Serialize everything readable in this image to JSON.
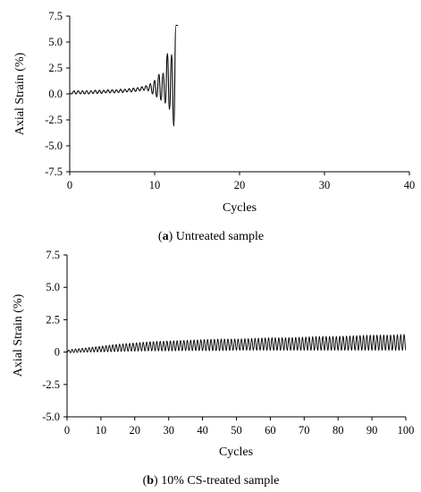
{
  "chart_data": [
    {
      "type": "line",
      "caption_label": "a",
      "caption_text": "Untreated sample",
      "xlabel": "Cycles",
      "ylabel": "Axial Strain (%)",
      "xlim": [
        0,
        40
      ],
      "ylim": [
        -7.5,
        7.5
      ],
      "x_ticks": [
        0,
        10,
        20,
        30,
        40
      ],
      "y_ticks": [
        -7.5,
        -5.0,
        -2.5,
        0.0,
        2.5,
        5.0,
        7.5
      ],
      "x_tick_labels": [
        "0",
        "10",
        "20",
        "30",
        "40"
      ],
      "y_tick_labels": [
        "-7.5",
        "-5.0",
        "-2.5",
        "0.0",
        "2.5",
        "5.0",
        "7.5"
      ],
      "series": [
        {
          "x": [
            0,
            0.25,
            0.5,
            0.75,
            1,
            1.25,
            1.5,
            1.75,
            2,
            2.25,
            2.5,
            2.75,
            3,
            3.25,
            3.5,
            3.75,
            4,
            4.25,
            4.5,
            4.75,
            5,
            5.25,
            5.5,
            5.75,
            6,
            6.25,
            6.5,
            6.75,
            7,
            7.25,
            7.5,
            7.75,
            8,
            8.25,
            8.5,
            8.75,
            9,
            9.25,
            9.5,
            9.75,
            10,
            10.25,
            10.5,
            10.75,
            11,
            11.25,
            11.5,
            11.75,
            12,
            12.25,
            12.5,
            12.75
          ],
          "y": [
            0.1,
            0.0,
            0.3,
            0.0,
            0.3,
            0.0,
            0.3,
            0.0,
            0.3,
            0.0,
            0.3,
            0.05,
            0.35,
            0.05,
            0.35,
            0.05,
            0.35,
            0.1,
            0.4,
            0.1,
            0.4,
            0.1,
            0.4,
            0.15,
            0.45,
            0.15,
            0.45,
            0.2,
            0.5,
            0.2,
            0.55,
            0.25,
            0.6,
            0.3,
            0.7,
            0.35,
            0.8,
            0.3,
            1.0,
            0.0,
            1.3,
            -0.3,
            1.9,
            -0.6,
            2.0,
            -0.9,
            3.9,
            -1.5,
            3.8,
            -3.1,
            6.6,
            6.6
          ]
        }
      ]
    },
    {
      "type": "line",
      "caption_label": "b",
      "caption_text": "10% CS-treated sample",
      "xlabel": "Cycles",
      "ylabel": "Axial Strain (%)",
      "xlim": [
        0,
        100
      ],
      "ylim": [
        -5.0,
        7.5
      ],
      "x_ticks": [
        0,
        10,
        20,
        30,
        40,
        50,
        60,
        70,
        80,
        90,
        100
      ],
      "y_ticks": [
        -5.0,
        -2.5,
        0,
        2.5,
        5.0,
        7.5
      ],
      "x_tick_labels": [
        "0",
        "10",
        "20",
        "30",
        "40",
        "50",
        "60",
        "70",
        "80",
        "90",
        "100"
      ],
      "y_tick_labels": [
        "-5.0",
        "-2.5",
        "0",
        "2.5",
        "5.0",
        "7.5"
      ],
      "series": [
        {
          "x": [
            0,
            1,
            5,
            10,
            15,
            20,
            25,
            30,
            35,
            40,
            45,
            50,
            55,
            60,
            65,
            70,
            75,
            80,
            85,
            90,
            95,
            100
          ],
          "y_min": [
            0.0,
            -0.05,
            0.0,
            0.02,
            0.05,
            0.08,
            0.1,
            0.1,
            0.12,
            0.12,
            0.12,
            0.15,
            0.15,
            0.15,
            0.15,
            0.15,
            0.15,
            0.15,
            0.15,
            0.15,
            0.15,
            0.15
          ],
          "y_max": [
            0.1,
            0.2,
            0.3,
            0.45,
            0.6,
            0.7,
            0.8,
            0.85,
            0.9,
            0.95,
            1.0,
            1.0,
            1.05,
            1.1,
            1.1,
            1.15,
            1.2,
            1.2,
            1.25,
            1.3,
            1.3,
            1.35
          ]
        }
      ]
    }
  ]
}
